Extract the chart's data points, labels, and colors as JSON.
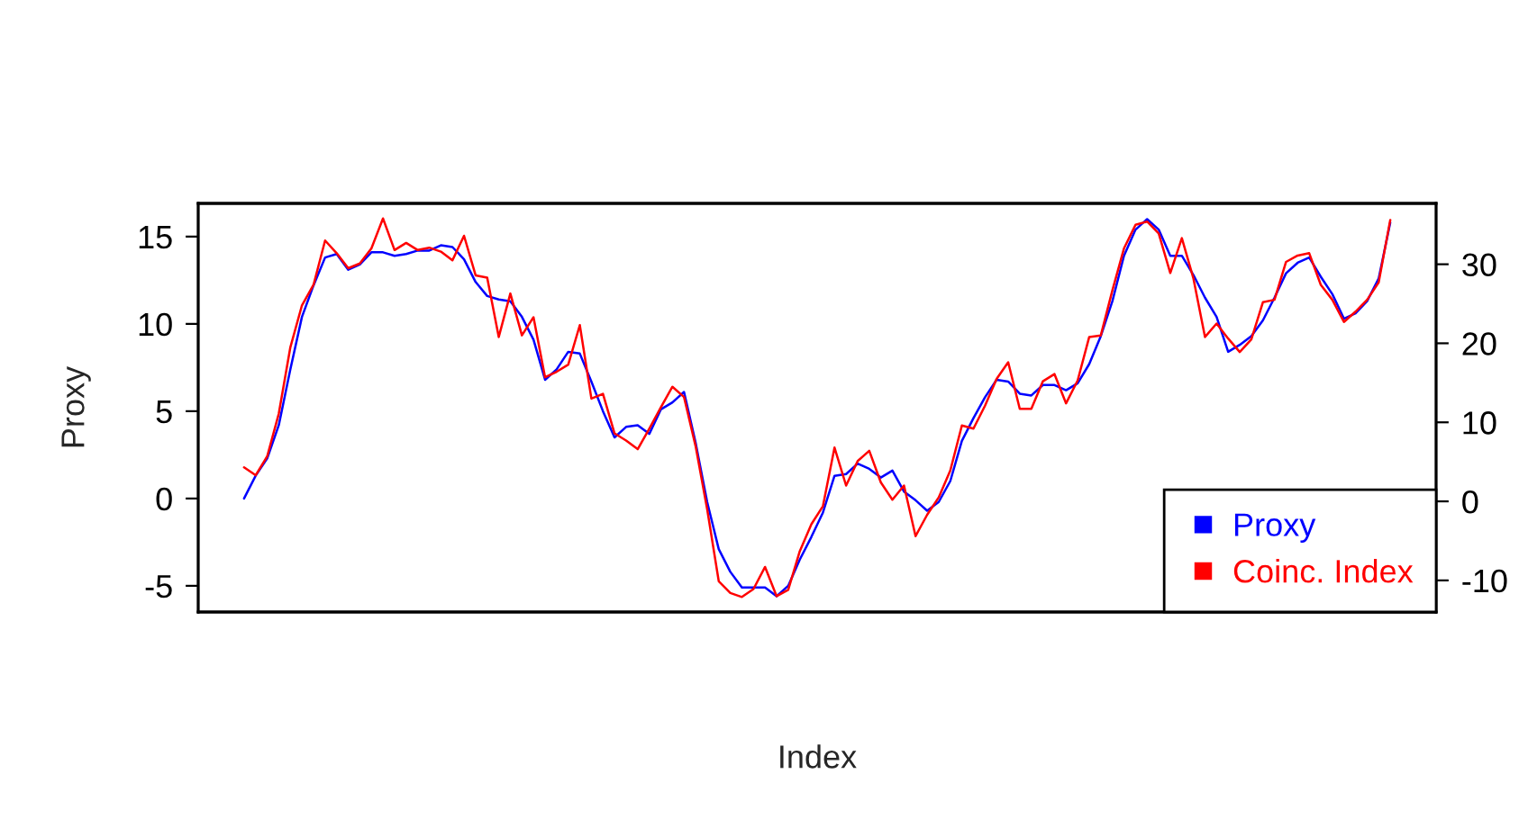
{
  "chart_data": {
    "type": "line",
    "xlabel": "Index",
    "ylabel": "Proxy",
    "categories": [
      null,
      null,
      null,
      null,
      null,
      null,
      null,
      null,
      null,
      null,
      null,
      null,
      null,
      null,
      null,
      null,
      null,
      null,
      null,
      null,
      null,
      null,
      null,
      null,
      null,
      null,
      null,
      null,
      null,
      null,
      null,
      null,
      null,
      null,
      null,
      null,
      null,
      null,
      null,
      null,
      null,
      null,
      null,
      null,
      null,
      null,
      null,
      null,
      null,
      null,
      null,
      null,
      null,
      null,
      null,
      null,
      null,
      null,
      null,
      null,
      null,
      null,
      null,
      null,
      null,
      null,
      null,
      null,
      null,
      null,
      null,
      null,
      null,
      null,
      null,
      null,
      null,
      null,
      null,
      null,
      null,
      null,
      null,
      null,
      null,
      null,
      null,
      null,
      null,
      null,
      null,
      null,
      null,
      null,
      null,
      null,
      null,
      null,
      null,
      null
    ],
    "series": [
      {
        "name": "Proxy",
        "color": "#0000ff",
        "values": [
          0.0,
          1.3,
          2.3,
          4.2,
          7.4,
          10.4,
          12.2,
          13.8,
          14.0,
          13.1,
          13.4,
          14.1,
          14.1,
          13.9,
          14.0,
          14.2,
          14.2,
          14.5,
          14.4,
          13.7,
          12.4,
          11.6,
          11.4,
          11.3,
          10.4,
          9.1,
          6.8,
          7.4,
          8.4,
          8.3,
          6.7,
          5.0,
          3.5,
          4.1,
          4.2,
          3.7,
          5.1,
          5.5,
          6.1,
          3.2,
          -0.2,
          -2.9,
          -4.2,
          -5.1,
          -5.1,
          -5.1,
          -5.6,
          -5.0,
          -3.5,
          -2.2,
          -0.8,
          1.3,
          1.4,
          2.0,
          1.7,
          1.2,
          1.6,
          0.4,
          -0.1,
          -0.7,
          -0.2,
          1.0,
          3.3,
          4.6,
          5.8,
          6.8,
          6.7,
          6.0,
          5.9,
          6.5,
          6.5,
          6.2,
          6.6,
          7.7,
          9.3,
          11.3,
          13.9,
          15.4,
          16.0,
          15.4,
          13.9,
          13.9,
          12.8,
          11.5,
          10.4,
          8.4,
          8.8,
          9.3,
          10.2,
          11.5,
          12.9,
          13.5,
          13.8,
          12.7,
          11.7,
          10.3,
          10.6,
          11.3,
          12.6,
          15.8
        ]
      },
      {
        "name": "Coinc. Index",
        "color": "#ff0000",
        "axis": "y2",
        "values": [
          4.3,
          3.3,
          5.7,
          11.1,
          19.5,
          24.8,
          27.4,
          33.0,
          31.4,
          29.5,
          30.1,
          32.0,
          35.8,
          31.8,
          32.7,
          31.8,
          32.1,
          31.6,
          30.5,
          33.6,
          28.6,
          28.3,
          20.8,
          26.3,
          21.0,
          23.3,
          15.7,
          16.4,
          17.3,
          22.3,
          13.0,
          13.6,
          8.6,
          7.7,
          6.6,
          9.2,
          11.9,
          14.5,
          13.2,
          7.0,
          -1.0,
          -10.1,
          -11.6,
          -12.1,
          -11.1,
          -8.3,
          -12.0,
          -11.2,
          -6.3,
          -2.9,
          -0.6,
          6.8,
          2.0,
          5.1,
          6.4,
          2.4,
          0.2,
          2.0,
          -4.4,
          -1.7,
          0.5,
          3.9,
          9.6,
          9.2,
          12.1,
          15.5,
          17.6,
          11.7,
          11.7,
          15.2,
          16.1,
          12.4,
          15.3,
          20.8,
          21.0,
          26.7,
          32.0,
          35.0,
          35.4,
          33.9,
          28.9,
          33.3,
          28.2,
          20.8,
          22.5,
          20.6,
          18.9,
          20.5,
          25.2,
          25.5,
          30.3,
          31.1,
          31.4,
          27.4,
          25.5,
          22.7,
          24.0,
          25.5,
          27.7,
          35.6
        ]
      }
    ],
    "ylim": [
      -6.5,
      16.9
    ],
    "yticks": [
      -5,
      0,
      5,
      10,
      15
    ],
    "y2lim": [
      -14,
      37.7
    ],
    "y2ticks": [
      -10,
      0,
      10,
      20,
      30
    ],
    "legend": "bottom right"
  }
}
